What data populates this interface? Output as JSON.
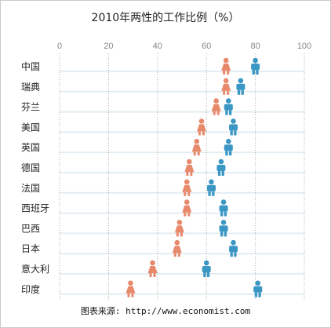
{
  "title": "2010年两性的工作比例（%）",
  "source": "图表来源: http://www.economist.com",
  "chart_data": {
    "type": "scatter",
    "title": "2010年两性的工作比例（%）",
    "xlim": [
      0,
      100
    ],
    "ticks": [
      0,
      20,
      40,
      60,
      80,
      100
    ],
    "grid": true,
    "categories": [
      "中国",
      "瑞典",
      "芬兰",
      "美国",
      "英国",
      "德国",
      "法国",
      "西班牙",
      "巴西",
      "日本",
      "意大利",
      "印度"
    ],
    "series": [
      {
        "name": "",
        "icon": "female-person-icon",
        "color": "#e8896b",
        "values": [
          68,
          68,
          64,
          58,
          56,
          53,
          52,
          52,
          49,
          48,
          38,
          29
        ]
      },
      {
        "name": "",
        "icon": "male-person-icon",
        "color": "#3a97c4",
        "values": [
          80,
          74,
          69,
          71,
          69,
          66,
          62,
          67,
          67,
          71,
          60,
          81
        ]
      }
    ]
  }
}
